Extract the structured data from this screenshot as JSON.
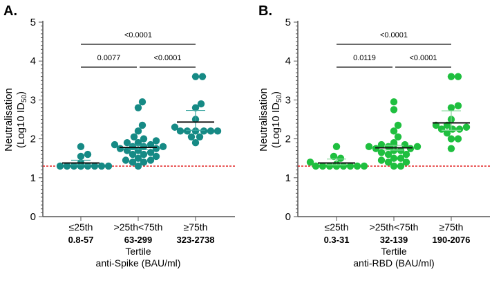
{
  "chart_data": [
    {
      "type": "scatter",
      "panel_label": "A.",
      "ylabel": "Neutralisation",
      "ylabel_line2": "(Log10 ID",
      "ylabel_sub": "50",
      "ylabel_end": ")",
      "ylim": [
        0,
        5
      ],
      "yticks": [
        "0",
        "1",
        "2",
        "3",
        "4",
        "5"
      ],
      "xlabel": "Tertile",
      "xlabel2": "anti-Spike (BAU/ml)",
      "color": "#168a85",
      "errcolor": "#3aa6a0",
      "threshold": 1.3,
      "categories": [
        "≤25th",
        ">25th<75th",
        "≥75th"
      ],
      "ranges": [
        "0.8-57",
        "63-299",
        "323-2738"
      ],
      "means": [
        1.38,
        1.78,
        2.43
      ],
      "sem_upper": [
        1.45,
        1.84,
        2.73
      ],
      "sem_lower": [
        1.33,
        1.72,
        2.22
      ],
      "values": [
        [
          1.3,
          1.3,
          1.3,
          1.3,
          1.3,
          1.3,
          1.3,
          1.3,
          1.3,
          1.3,
          1.3,
          1.38,
          1.55,
          1.6,
          1.8
        ],
        [
          1.3,
          1.4,
          1.4,
          1.45,
          1.45,
          1.5,
          1.55,
          1.6,
          1.6,
          1.65,
          1.7,
          1.7,
          1.75,
          1.75,
          1.8,
          1.8,
          1.8,
          1.85,
          1.85,
          1.9,
          1.9,
          1.9,
          1.95,
          2.0,
          2.05,
          2.2,
          2.35,
          2.8,
          2.95
        ],
        [
          1.9,
          2.05,
          2.05,
          2.2,
          2.2,
          2.2,
          2.2,
          2.2,
          2.2,
          2.3,
          2.5,
          2.8,
          2.9,
          3.6,
          3.6
        ]
      ],
      "comparisons": [
        {
          "from": 0,
          "to": 2,
          "p": "<0.0001",
          "level": 2
        },
        {
          "from": 0,
          "to": 1,
          "p": "0.0077",
          "level": 1
        },
        {
          "from": 1,
          "to": 2,
          "p": "<0.0001",
          "level": 1
        }
      ]
    },
    {
      "type": "scatter",
      "panel_label": "B.",
      "ylabel": "Neutralisation",
      "ylabel_line2": "(Log10 ID",
      "ylabel_sub": "50",
      "ylabel_end": ")",
      "ylim": [
        0,
        5
      ],
      "yticks": [
        "0",
        "1",
        "2",
        "3",
        "4",
        "5"
      ],
      "xlabel": "Tertile",
      "xlabel2": "anti-RBD (BAU/ml)",
      "color": "#1fbf3f",
      "errcolor": "#86d99a",
      "threshold": 1.3,
      "categories": [
        "≤25th",
        ">25th<75th",
        "≥75th"
      ],
      "ranges": [
        "0.3-31",
        "32-139",
        "190-2076"
      ],
      "means": [
        1.38,
        1.77,
        2.41
      ],
      "sem_upper": [
        1.48,
        1.83,
        2.72
      ],
      "sem_lower": [
        1.33,
        1.71,
        2.22
      ],
      "values": [
        [
          1.3,
          1.3,
          1.3,
          1.3,
          1.3,
          1.3,
          1.3,
          1.3,
          1.3,
          1.3,
          1.35,
          1.4,
          1.5,
          1.55,
          1.8
        ],
        [
          1.3,
          1.3,
          1.4,
          1.4,
          1.45,
          1.5,
          1.5,
          1.6,
          1.6,
          1.65,
          1.7,
          1.7,
          1.75,
          1.75,
          1.8,
          1.8,
          1.8,
          1.85,
          1.85,
          1.85,
          1.9,
          2.05,
          2.2,
          2.35,
          2.75,
          2.95
        ],
        [
          1.75,
          2.0,
          2.0,
          2.15,
          2.25,
          2.25,
          2.25,
          2.3,
          2.35,
          2.35,
          2.5,
          2.8,
          2.85,
          3.6,
          3.6
        ]
      ],
      "comparisons": [
        {
          "from": 0,
          "to": 2,
          "p": "<0.0001",
          "level": 2
        },
        {
          "from": 0,
          "to": 1,
          "p": "0.0119",
          "level": 1
        },
        {
          "from": 1,
          "to": 2,
          "p": "<0.0001",
          "level": 1
        }
      ]
    }
  ]
}
